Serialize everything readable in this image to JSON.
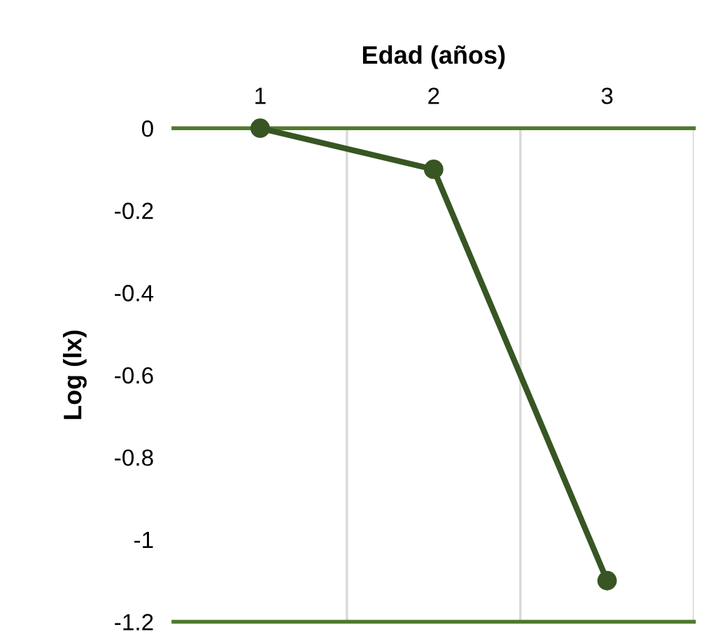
{
  "chart_data": {
    "type": "line",
    "xlabel": "Edad (años)",
    "ylabel": "Log (lx)",
    "categories": [
      "1",
      "2",
      "3"
    ],
    "series": [
      {
        "color": "#375623",
        "values": [
          0,
          -0.1,
          -1.1
        ]
      }
    ],
    "ylim": [
      -1.2,
      0
    ],
    "yticks": [
      0,
      -0.2,
      -0.4,
      -0.6,
      -0.8,
      -1,
      -1.2
    ],
    "grid": "x",
    "marker": "circle",
    "line_style": "solid"
  }
}
